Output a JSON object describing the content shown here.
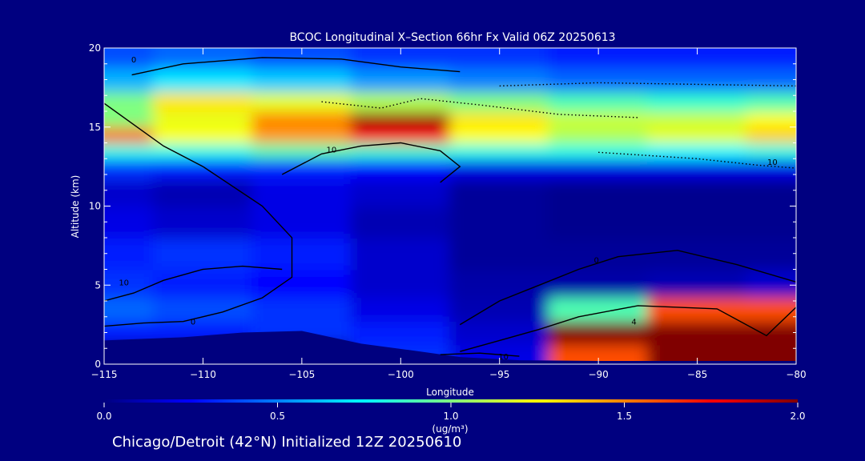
{
  "chart_data": {
    "type": "heatmap",
    "title": "BCOC Longitudinal X–Section 66hr  Fx Valid 06Z 20250613",
    "xlabel": "Longitude",
    "ylabel": "Altitude (km)",
    "xlim": [
      -115,
      -80
    ],
    "ylim": [
      0,
      20
    ],
    "xticks": [
      -115,
      -110,
      -105,
      -100,
      -95,
      -90,
      -85,
      -80
    ],
    "xtick_labels": [
      "−115",
      "−110",
      "−105",
      "−100",
      "−95",
      "−90",
      "−85",
      "−80"
    ],
    "yticks": [
      0,
      5,
      10,
      15,
      20
    ],
    "ytick_labels": [
      "0",
      "5",
      "10",
      "15",
      "20"
    ],
    "grid": false,
    "colorbar": {
      "label": "(ug/m³)",
      "range": [
        0.0,
        2.0
      ],
      "ticks": [
        0.0,
        0.5,
        1.0,
        1.5,
        2.0
      ],
      "tick_labels": [
        "0.0",
        "0.5",
        "1.0",
        "1.5",
        "2.0"
      ],
      "colors": [
        "#00007f",
        "#0000ff",
        "#0080ff",
        "#00ffff",
        "#80ff80",
        "#ffff00",
        "#ff8000",
        "#ff0000",
        "#800000"
      ]
    },
    "lon": [
      -115,
      -110,
      -105,
      -100,
      -95,
      -90,
      -85,
      -80
    ],
    "alt": [
      0.5,
      2,
      3.5,
      5,
      7,
      9,
      11,
      12.5,
      13.5,
      14.5,
      15.5,
      16.5,
      18,
      19.5
    ],
    "values": [
      [
        null,
        null,
        null,
        0.35,
        0.2,
        1.6,
        2.0,
        2.0
      ],
      [
        0.3,
        0.3,
        0.35,
        0.3,
        0.15,
        2.0,
        2.0,
        2.0
      ],
      [
        0.45,
        0.4,
        0.35,
        0.2,
        0.1,
        0.9,
        1.6,
        1.6
      ],
      [
        0.35,
        0.3,
        0.25,
        0.15,
        0.08,
        0.08,
        0.1,
        0.15
      ],
      [
        0.3,
        0.35,
        0.3,
        0.15,
        0.05,
        0.05,
        0.05,
        0.05
      ],
      [
        0.2,
        0.15,
        0.2,
        0.1,
        0.05,
        0.03,
        0.03,
        0.03
      ],
      [
        0.15,
        0.1,
        0.2,
        0.15,
        0.05,
        0.03,
        0.03,
        0.03
      ],
      [
        0.35,
        0.3,
        0.3,
        0.25,
        0.2,
        0.2,
        0.2,
        0.2
      ],
      [
        0.8,
        0.8,
        0.9,
        0.85,
        0.8,
        0.8,
        0.75,
        0.8
      ],
      [
        1.55,
        1.25,
        1.45,
        1.75,
        1.25,
        1.1,
        1.2,
        1.35
      ],
      [
        1.0,
        1.2,
        1.5,
        1.95,
        1.3,
        1.15,
        1.15,
        1.25
      ],
      [
        1.0,
        1.3,
        1.2,
        1.1,
        1.0,
        0.9,
        0.85,
        0.9
      ],
      [
        0.6,
        0.7,
        0.65,
        0.55,
        0.5,
        0.45,
        0.45,
        0.45
      ],
      [
        0.4,
        0.45,
        0.4,
        0.35,
        0.35,
        0.3,
        0.3,
        0.3
      ]
    ],
    "terrain": [
      [
        -115,
        1.5
      ],
      [
        -111,
        1.7
      ],
      [
        -108,
        2.0
      ],
      [
        -105,
        2.1
      ],
      [
        -102,
        1.3
      ],
      [
        -99,
        0.8
      ],
      [
        -97,
        0.45
      ],
      [
        -94,
        0.25
      ],
      [
        -90,
        0.2
      ],
      [
        -85,
        0.2
      ],
      [
        -80,
        0.2
      ]
    ],
    "contours": [
      {
        "label": "0",
        "label_at": [
          -113.5,
          19.1
        ],
        "points": [
          [
            -113.6,
            18.3
          ],
          [
            -111,
            19.0
          ],
          [
            -107,
            19.4
          ],
          [
            -103,
            19.3
          ],
          [
            -100,
            18.8
          ],
          [
            -97,
            18.5
          ]
        ]
      },
      {
        "label": "0",
        "label_at": [
          -110.5,
          2.5
        ],
        "points": [
          [
            -115,
            2.4
          ],
          [
            -113,
            2.6
          ],
          [
            -111,
            2.7
          ],
          [
            -109,
            3.3
          ],
          [
            -107,
            4.2
          ],
          [
            -105.5,
            5.5
          ],
          [
            -105.5,
            8.0
          ],
          [
            -107,
            10.0
          ],
          [
            -110,
            12.5
          ],
          [
            -112,
            13.8
          ],
          [
            -115,
            16.5
          ]
        ]
      },
      {
        "label": "10",
        "label_at": [
          -114,
          5.0
        ],
        "points": [
          [
            -115,
            4.0
          ],
          [
            -113.5,
            4.5
          ],
          [
            -112,
            5.3
          ],
          [
            -110,
            6.0
          ],
          [
            -108,
            6.2
          ],
          [
            -106,
            6.0
          ]
        ]
      },
      {
        "label": "10",
        "label_at": [
          -103.5,
          13.4
        ],
        "points": [
          [
            -106,
            12.0
          ],
          [
            -104,
            13.3
          ],
          [
            -102,
            13.8
          ],
          [
            -100,
            14.0
          ],
          [
            -98,
            13.5
          ],
          [
            -97,
            12.5
          ],
          [
            -98,
            11.5
          ]
        ]
      },
      {
        "label": "0",
        "label_at": [
          -90.1,
          6.4
        ],
        "points": [
          [
            -97,
            2.5
          ],
          [
            -95,
            4.0
          ],
          [
            -93,
            5.0
          ],
          [
            -91,
            6.0
          ],
          [
            -89,
            6.8
          ],
          [
            -86,
            7.2
          ],
          [
            -83,
            6.3
          ],
          [
            -80,
            5.2
          ]
        ]
      },
      {
        "label": "4",
        "label_at": [
          -88.2,
          2.5
        ],
        "points": [
          [
            -97,
            0.8
          ],
          [
            -95,
            1.5
          ],
          [
            -93,
            2.2
          ],
          [
            -91,
            3.0
          ],
          [
            -88,
            3.7
          ],
          [
            -84,
            3.5
          ],
          [
            -81.5,
            1.8
          ],
          [
            -80,
            3.6
          ]
        ]
      },
      {
        "label": "10",
        "label_at": [
          -94.8,
          0.3
        ],
        "points": [
          [
            -98,
            0.6
          ],
          [
            -96,
            0.7
          ],
          [
            -94,
            0.5
          ]
        ]
      },
      {
        "label": "10",
        "label_at": [
          -81.2,
          12.6
        ],
        "points": [
          [
            -90,
            13.4
          ],
          [
            -85,
            13.0
          ],
          [
            -82,
            12.6
          ],
          [
            -80,
            12.4
          ]
        ],
        "dashed": true
      },
      {
        "label": "",
        "points": [
          [
            -95,
            17.6
          ],
          [
            -90,
            17.8
          ],
          [
            -85,
            17.7
          ],
          [
            -80,
            17.6
          ]
        ],
        "dashed": true
      },
      {
        "label": "",
        "points": [
          [
            -104,
            16.6
          ],
          [
            -101,
            16.2
          ],
          [
            -99,
            16.8
          ],
          [
            -96,
            16.4
          ],
          [
            -92,
            15.8
          ],
          [
            -88,
            15.6
          ]
        ],
        "dashed": true
      }
    ]
  },
  "footer": "Chicago/Detroit (42°N) Initialized 12Z 20250610"
}
